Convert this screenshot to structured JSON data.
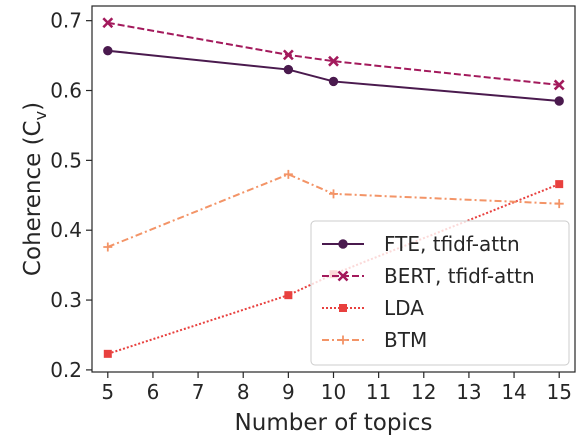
{
  "chart_data": {
    "type": "line",
    "xlabel": "Number of topics",
    "ylabel": "Coherence (C",
    "ylabel_subscript": "v",
    "ylabel_suffix": ")",
    "xlim": [
      4.65,
      15.35
    ],
    "ylim": [
      0.197,
      0.721
    ],
    "x_ticks": [
      5,
      6,
      7,
      8,
      9,
      10,
      11,
      12,
      13,
      14,
      15
    ],
    "y_ticks": [
      0.2,
      0.3,
      0.4,
      0.5,
      0.6,
      0.7
    ],
    "x_tick_labels": [
      "5",
      "6",
      "7",
      "8",
      "9",
      "10",
      "11",
      "12",
      "13",
      "14",
      "15"
    ],
    "y_tick_labels": [
      "0.2",
      "0.3",
      "0.4",
      "0.5",
      "0.6",
      "0.7"
    ],
    "grid": false,
    "legend_position": "lower right",
    "series": [
      {
        "name": "FTE, tfidf-attn",
        "x": [
          5,
          9,
          10,
          15
        ],
        "y": [
          0.657,
          0.63,
          0.613,
          0.585
        ],
        "color": "#4a1a4e",
        "dash": "solid",
        "marker": "circle"
      },
      {
        "name": "BERT, tfidf-attn",
        "x": [
          5,
          9,
          10,
          15
        ],
        "y": [
          0.697,
          0.651,
          0.642,
          0.608
        ],
        "color": "#a31a5c",
        "dash": "dashed",
        "marker": "x"
      },
      {
        "name": "LDA",
        "x": [
          5,
          9,
          10,
          15
        ],
        "y": [
          0.223,
          0.307,
          0.337,
          0.466
        ],
        "color": "#e8403e",
        "dash": "dotted",
        "marker": "square"
      },
      {
        "name": "BTM",
        "x": [
          5,
          9,
          10,
          15
        ],
        "y": [
          0.376,
          0.48,
          0.452,
          0.438
        ],
        "color": "#f39467",
        "dash": "dashdot",
        "marker": "plus"
      }
    ]
  }
}
